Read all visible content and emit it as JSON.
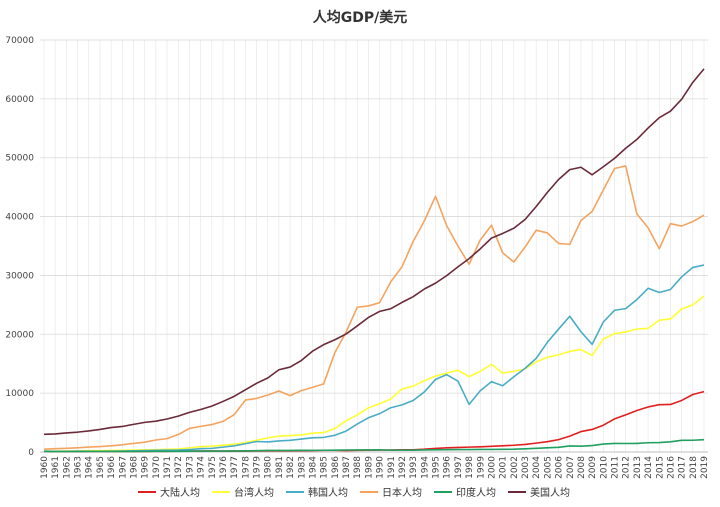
{
  "chart_data": {
    "type": "line",
    "title": "人均GDP/美元",
    "xlabel": "",
    "ylabel": "",
    "ylim": [
      0,
      70000
    ],
    "yticks": [
      0,
      10000,
      20000,
      30000,
      40000,
      50000,
      60000,
      70000
    ],
    "grid": true,
    "legend_position": "bottom",
    "x": [
      "1960",
      "1961",
      "1962",
      "1963",
      "1964",
      "1965",
      "1966",
      "1967",
      "1968",
      "1969",
      "1970",
      "1971",
      "1972",
      "1973",
      "1974",
      "1975",
      "1976",
      "1977",
      "1978",
      "1979",
      "1980",
      "1981",
      "1982",
      "1983",
      "1984",
      "1985",
      "1986",
      "1987",
      "1988",
      "1989",
      "1990",
      "1991",
      "1992",
      "1993",
      "1994",
      "1995",
      "1996",
      "1997",
      "1998",
      "1999",
      "2000",
      "2001",
      "2002",
      "2003",
      "2004",
      "2005",
      "2006",
      "2007",
      "2008",
      "2009",
      "2010",
      "2011",
      "2012",
      "2013",
      "2014",
      "2015",
      "2016",
      "2017",
      "2018",
      "2019"
    ],
    "series": [
      {
        "name": "大陆人均",
        "color": "#e02020",
        "values": [
          90,
          76,
          70,
          74,
          85,
          98,
          104,
          97,
          91,
          100,
          113,
          119,
          132,
          157,
          160,
          178,
          165,
          185,
          156,
          183,
          195,
          197,
          203,
          225,
          250,
          294,
          281,
          252,
          283,
          311,
          318,
          333,
          366,
          377,
          473,
          610,
          709,
          781,
          828,
          873,
          959,
          1053,
          1149,
          1289,
          1509,
          1753,
          2099,
          2695,
          3468,
          3832,
          4550,
          5618,
          6317,
          7051,
          7651,
          8033,
          8078,
          8759,
          9771,
          10262
        ]
      },
      {
        "name": "台湾人均",
        "color": "#ffff33",
        "values": [
          160,
          150,
          170,
          190,
          220,
          230,
          260,
          290,
          330,
          380,
          400,
          450,
          520,
          700,
          900,
          980,
          1150,
          1300,
          1600,
          2000,
          2400,
          2700,
          2800,
          2900,
          3200,
          3300,
          4000,
          5300,
          6300,
          7500,
          8200,
          9000,
          10700,
          11200,
          12100,
          12900,
          13400,
          13900,
          12800,
          13700,
          14900,
          13400,
          13700,
          14100,
          15300,
          16100,
          16500,
          17100,
          17400,
          16400,
          19200,
          20100,
          20400,
          20900,
          21000,
          22400,
          22600,
          24300,
          25000,
          26500
        ]
      },
      {
        "name": "韩国人均",
        "color": "#4bacc6",
        "values": [
          158,
          93,
          106,
          146,
          124,
          108,
          133,
          161,
          199,
          244,
          279,
          301,
          324,
          406,
          563,
          615,
          830,
          1055,
          1405,
          1783,
          1715,
          1883,
          1993,
          2199,
          2413,
          2482,
          2835,
          3555,
          4749,
          5818,
          6516,
          7523,
          8002,
          8741,
          10206,
          12333,
          13138,
          12059,
          8086,
          10409,
          11948,
          11253,
          12789,
          14209,
          15908,
          18640,
          20888,
          23061,
          20431,
          18292,
          22087,
          24080,
          24359,
          25890,
          27811,
          27105,
          27608,
          29743,
          31363,
          31762
        ]
      },
      {
        "name": "日本人均",
        "color": "#f4a460",
        "values": [
          479,
          564,
          634,
          717,
          835,
          920,
          1059,
          1229,
          1451,
          1669,
          2037,
          2272,
          2967,
          3997,
          4354,
          4659,
          5198,
          6335,
          8821,
          9105,
          9659,
          10360,
          9575,
          10421,
          10979,
          11577,
          16882,
          20355,
          24591,
          24819,
          25371,
          28925,
          31465,
          35766,
          39269,
          43440,
          38437,
          35022,
          31903,
          36027,
          38532,
          33846,
          32289,
          34808,
          37689,
          37218,
          35434,
          35275,
          39339,
          40855,
          44508,
          48168,
          48603,
          40454,
          38109,
          34524,
          38794,
          38387,
          39159,
          40247
        ]
      },
      {
        "name": "印度人均",
        "color": "#20a060",
        "values": [
          82,
          85,
          89,
          101,
          115,
          119,
          89,
          96,
          99,
          107,
          112,
          118,
          122,
          143,
          163,
          158,
          161,
          186,
          206,
          224,
          267,
          271,
          274,
          292,
          277,
          296,
          310,
          340,
          354,
          346,
          368,
          303,
          317,
          301,
          346,
          373,
          399,
          415,
          413,
          442,
          443,
          451,
          470,
          546,
          624,
          714,
          801,
          1022,
          993,
          1090,
          1345,
          1458,
          1444,
          1450,
          1574,
          1606,
          1733,
          1981,
          1996,
          2100
        ]
      },
      {
        "name": "美国人均",
        "color": "#6b2a3a",
        "values": [
          3007,
          3067,
          3244,
          3375,
          3574,
          3828,
          4146,
          4336,
          4696,
          5032,
          5234,
          5609,
          6094,
          6726,
          7226,
          7801,
          8592,
          9453,
          10565,
          11674,
          12575,
          13976,
          14434,
          15544,
          17121,
          18237,
          19071,
          20039,
          21417,
          22857,
          23889,
          24342,
          25419,
          26387,
          27695,
          28691,
          29968,
          31459,
          32854,
          34515,
          36335,
          37133,
          38023,
          39497,
          41712,
          44115,
          46299,
          47976,
          48383,
          47100,
          48467,
          49883,
          51603,
          53107,
          55033,
          56803,
          57904,
          59928,
          62805,
          65095
        ]
      }
    ]
  }
}
